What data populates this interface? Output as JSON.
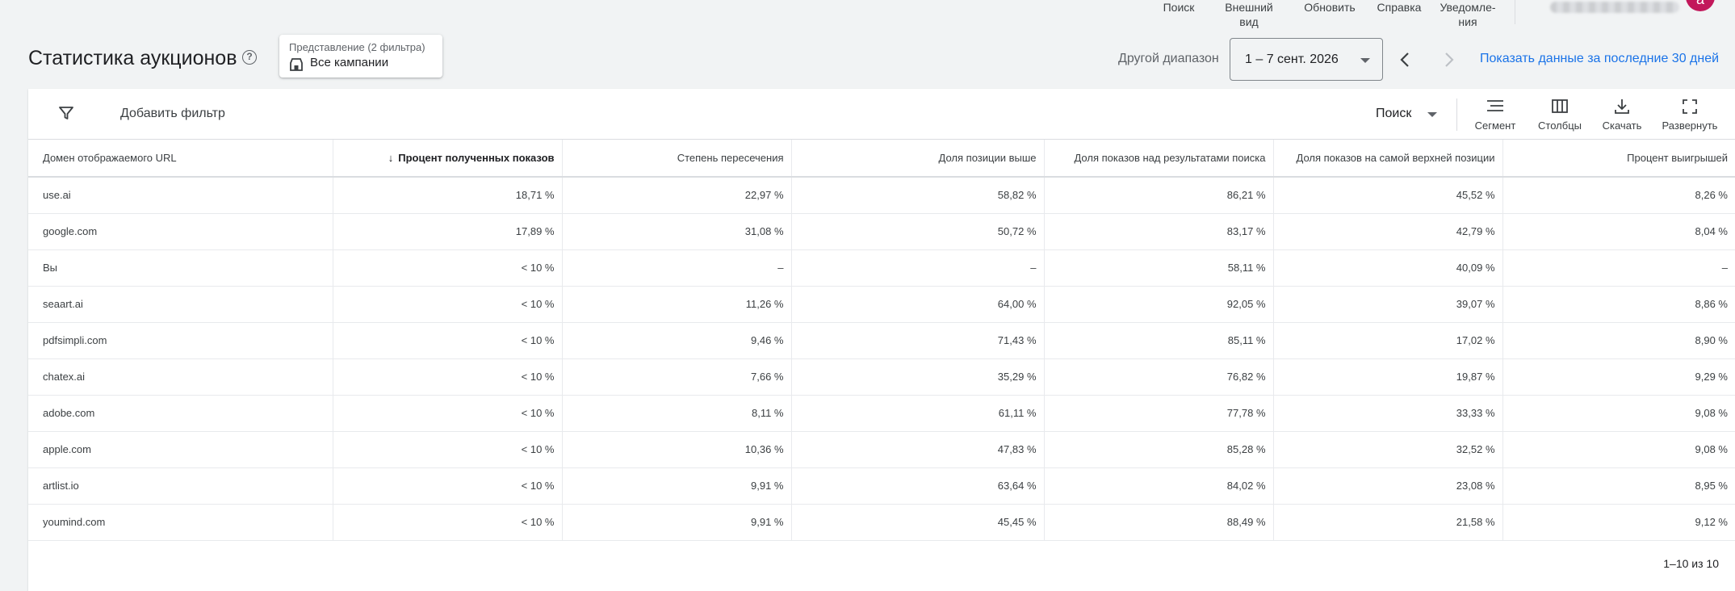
{
  "top_toolbar": {
    "actions": [
      {
        "id": "search",
        "lines": [
          "Поиск"
        ]
      },
      {
        "id": "appearance",
        "lines": [
          "Внешний",
          "вид"
        ]
      },
      {
        "id": "refresh",
        "lines": [
          "Обновить"
        ]
      },
      {
        "id": "help",
        "lines": [
          "Справка"
        ]
      },
      {
        "id": "notifications",
        "lines": [
          "Уведомле-",
          "ния"
        ]
      }
    ],
    "avatar_letter": "a"
  },
  "header": {
    "title": "Статистика аукционов",
    "view_label": "Представление (2 фильтра)",
    "view_value": "Все кампании",
    "range_label": "Другой диапазон",
    "date_range": "1 – 7 сент. 2026",
    "show_30_days": "Показать данные за последние 30 дней"
  },
  "filter_bar": {
    "add_filter": "Добавить фильтр",
    "search_type": "Поиск",
    "tools": {
      "segment": "Сегмент",
      "columns": "Столбцы",
      "download": "Скачать",
      "expand": "Развернуть"
    }
  },
  "table": {
    "columns": [
      "Домен отображаемого URL",
      "Процент полученных показов",
      "Степень пересечения",
      "Доля позиции выше",
      "Доля показов над результатами поиска",
      "Доля показов на самой верхней позиции",
      "Процент выигрышей"
    ],
    "sort_arrow": "↓",
    "rows": [
      [
        "use.ai",
        "18,71 %",
        "22,97 %",
        "58,82 %",
        "86,21 %",
        "45,52 %",
        "8,26 %"
      ],
      [
        "google.com",
        "17,89 %",
        "31,08 %",
        "50,72 %",
        "83,17 %",
        "42,79 %",
        "8,04 %"
      ],
      [
        "Вы",
        "< 10 %",
        "–",
        "–",
        "58,11 %",
        "40,09 %",
        "–"
      ],
      [
        "seaart.ai",
        "< 10 %",
        "11,26 %",
        "64,00 %",
        "92,05 %",
        "39,07 %",
        "8,86 %"
      ],
      [
        "pdfsimpli.com",
        "< 10 %",
        "9,46 %",
        "71,43 %",
        "85,11 %",
        "17,02 %",
        "8,90 %"
      ],
      [
        "chatex.ai",
        "< 10 %",
        "7,66 %",
        "35,29 %",
        "76,82 %",
        "19,87 %",
        "9,29 %"
      ],
      [
        "adobe.com",
        "< 10 %",
        "8,11 %",
        "61,11 %",
        "77,78 %",
        "33,33 %",
        "9,08 %"
      ],
      [
        "apple.com",
        "< 10 %",
        "10,36 %",
        "47,83 %",
        "85,28 %",
        "32,52 %",
        "9,08 %"
      ],
      [
        "artlist.io",
        "< 10 %",
        "9,91 %",
        "63,64 %",
        "84,02 %",
        "23,08 %",
        "8,95 %"
      ],
      [
        "youmind.com",
        "< 10 %",
        "9,91 %",
        "45,45 %",
        "88,49 %",
        "21,58 %",
        "9,12 %"
      ]
    ],
    "pagination": "1–10 из 10"
  }
}
